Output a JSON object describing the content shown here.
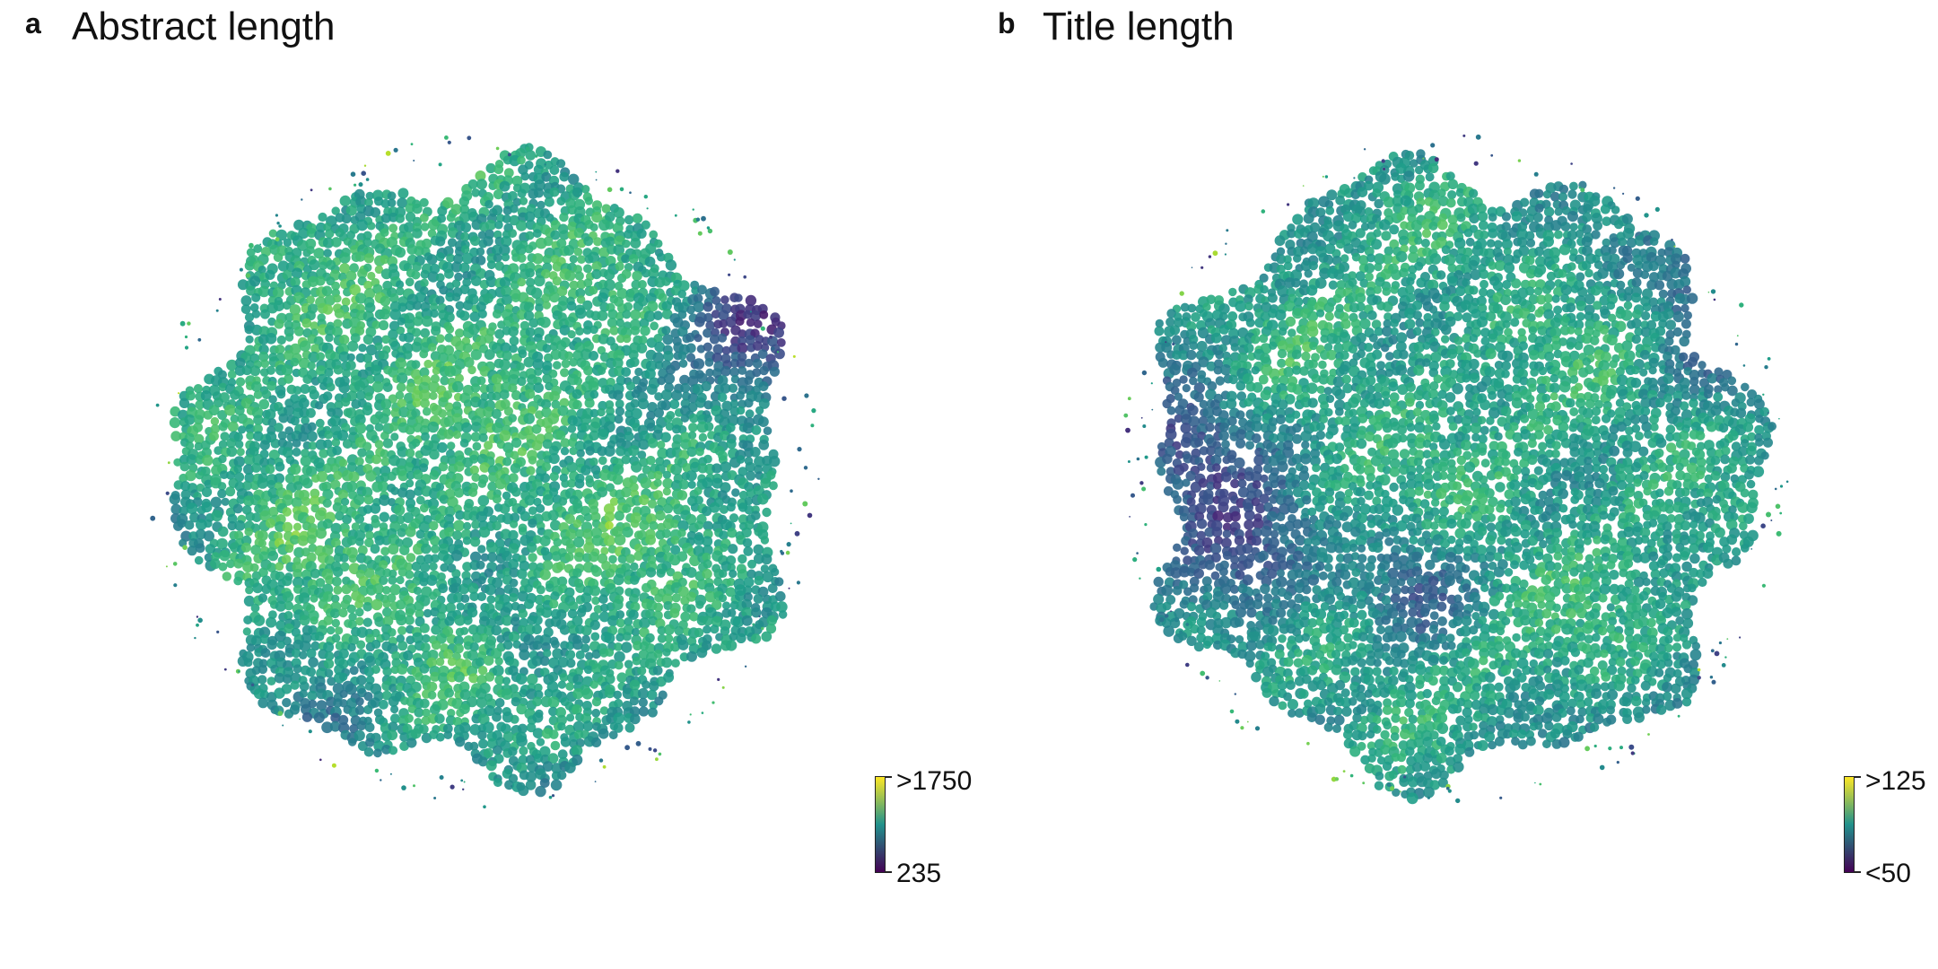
{
  "chart_data": [
    {
      "panel": "a",
      "type": "scatter",
      "title": "Abstract length",
      "colorbar": {
        "min_label": "235",
        "max_label": ">1750",
        "colormap": "viridis"
      }
    },
    {
      "panel": "b",
      "type": "scatter",
      "title": "Title length",
      "colorbar": {
        "min_label": "<50",
        "max_label": ">125",
        "colormap": "viridis"
      }
    }
  ],
  "colors": {
    "viridis_low": "#440154",
    "viridis_mid": "#21918c",
    "viridis_high": "#fde725"
  }
}
